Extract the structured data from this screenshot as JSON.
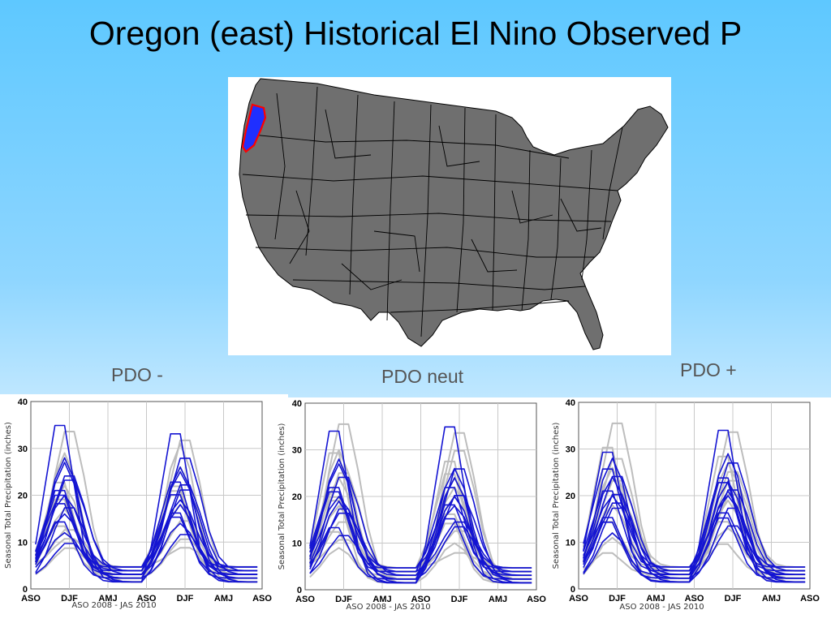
{
  "slide": {
    "title": "Oregon (east) Historical El Nino Observed P"
  },
  "map": {
    "land_color": "#6f6f6f",
    "border_color": "#000000",
    "highlight_fill": "#1f2fff",
    "highlight_outline": "#ff0000",
    "highlighted_region": "Oregon (east) climate division"
  },
  "panels": [
    {
      "label": "PDO -"
    },
    {
      "label": "PDO neut"
    },
    {
      "label": "PDO +"
    }
  ],
  "chart_data": [
    {
      "type": "line",
      "panel": "PDO -",
      "ylabel": "Seasonal Total Precipitation (inches)",
      "xlabel": "ASO 2008 - JAS 2010",
      "x_tick_labels": [
        "ASO",
        "DJF",
        "AMJ",
        "ASO",
        "DJF",
        "AMJ",
        "ASO"
      ],
      "y_ticks": [
        0,
        10,
        20,
        30,
        40
      ],
      "ylim": [
        0,
        40
      ],
      "season_count": 24,
      "grid": true,
      "colors": {
        "highlight": "#1414d2",
        "background": "#bdbdbd"
      },
      "highlight_peaks": [
        [
          37,
          35
        ],
        [
          28,
          26
        ],
        [
          25,
          23
        ],
        [
          22,
          24
        ],
        [
          20,
          19
        ],
        [
          18,
          22
        ],
        [
          15,
          17
        ],
        [
          12,
          14
        ],
        [
          24,
          29
        ],
        [
          19,
          21
        ],
        [
          27,
          18
        ],
        [
          10,
          12
        ],
        [
          21,
          16
        ],
        [
          16,
          25
        ]
      ],
      "background_peaks": [
        [
          35,
          33
        ],
        [
          24,
          22
        ],
        [
          17,
          26
        ],
        [
          13,
          15
        ],
        [
          20,
          23
        ],
        [
          29,
          31
        ],
        [
          9,
          11
        ],
        [
          14,
          21
        ],
        [
          22,
          18
        ],
        [
          11,
          9
        ]
      ]
    },
    {
      "type": "line",
      "panel": "PDO neut",
      "ylabel": "Seasonal Total Precipitation (inches)",
      "xlabel": "ASO 2008 - JAS 2010",
      "x_tick_labels": [
        "ASO",
        "DJF",
        "AMJ",
        "ASO",
        "DJF",
        "AMJ",
        "ASO"
      ],
      "y_ticks": [
        0,
        10,
        20,
        30,
        40
      ],
      "ylim": [
        0,
        40
      ],
      "season_count": 24,
      "grid": true,
      "colors": {
        "highlight": "#1414d2",
        "background": "#bdbdbd"
      },
      "highlight_peaks": [
        [
          36,
          37
        ],
        [
          28,
          26
        ],
        [
          25,
          21
        ],
        [
          22,
          23
        ],
        [
          20,
          18
        ],
        [
          18,
          27
        ],
        [
          14,
          16
        ],
        [
          27,
          20
        ],
        [
          17,
          15
        ],
        [
          23,
          19
        ],
        [
          19,
          24
        ],
        [
          12,
          14
        ]
      ],
      "background_peaks": [
        [
          37,
          35
        ],
        [
          31,
          29
        ],
        [
          24,
          22
        ],
        [
          15,
          13
        ],
        [
          20,
          26
        ],
        [
          9,
          10
        ],
        [
          26,
          31
        ],
        [
          13,
          17
        ],
        [
          18,
          20
        ],
        [
          11,
          8
        ],
        [
          21,
          15
        ],
        [
          30,
          24
        ]
      ]
    },
    {
      "type": "line",
      "panel": "PDO +",
      "ylabel": "Seasonal Total Precipitation (inches)",
      "xlabel": "ASO 2008 - JAS 2010",
      "x_tick_labels": [
        "ASO",
        "DJF",
        "AMJ",
        "ASO",
        "DJF",
        "AMJ",
        "ASO"
      ],
      "y_ticks": [
        0,
        10,
        20,
        30,
        40
      ],
      "ylim": [
        0,
        40
      ],
      "season_count": 24,
      "grid": true,
      "colors": {
        "highlight": "#1414d2",
        "background": "#bdbdbd"
      },
      "highlight_peaks": [
        [
          31,
          36
        ],
        [
          28,
          29
        ],
        [
          25,
          22
        ],
        [
          22,
          25
        ],
        [
          20,
          20
        ],
        [
          18,
          18
        ],
        [
          15,
          16
        ],
        [
          24,
          23
        ],
        [
          19,
          28
        ],
        [
          27,
          17
        ],
        [
          12,
          21
        ],
        [
          21,
          14
        ],
        [
          16,
          24
        ]
      ],
      "background_peaks": [
        [
          37,
          35
        ],
        [
          32,
          30
        ],
        [
          26,
          27
        ],
        [
          21,
          24
        ],
        [
          15,
          15
        ],
        [
          11,
          19
        ],
        [
          29,
          21
        ],
        [
          8,
          10
        ],
        [
          18,
          13
        ],
        [
          24,
          26
        ]
      ]
    }
  ]
}
